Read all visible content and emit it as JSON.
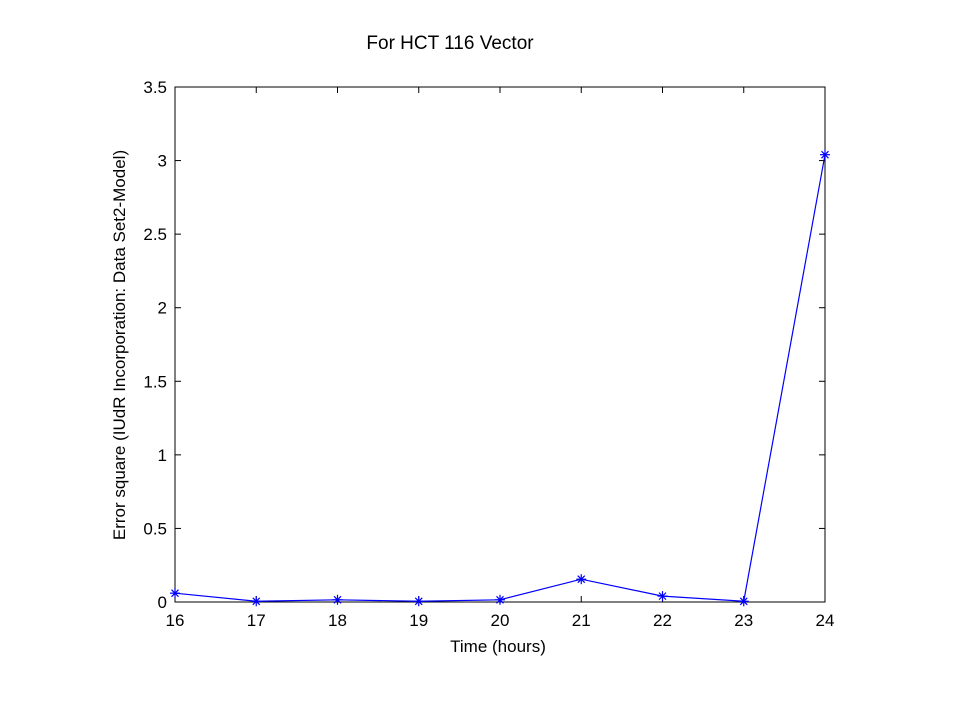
{
  "chart_data": {
    "type": "line",
    "title": "For HCT 116 Vector",
    "xlabel": "Time (hours)",
    "ylabel": "Error square (IUdR Incorporation: Data Set2-Model)",
    "xlim": [
      16,
      24
    ],
    "ylim": [
      0,
      3.5
    ],
    "xticks": [
      16,
      17,
      18,
      19,
      20,
      21,
      22,
      23,
      24
    ],
    "yticks": [
      0,
      0.5,
      1,
      1.5,
      2,
      2.5,
      3,
      3.5
    ],
    "xtick_labels": [
      "16",
      "17",
      "18",
      "19",
      "20",
      "21",
      "22",
      "23",
      "24"
    ],
    "ytick_labels": [
      "0",
      "0.5",
      "1",
      "1.5",
      "2",
      "2.5",
      "3",
      "3.5"
    ],
    "grid": false,
    "series": [
      {
        "color": "#0000ff",
        "marker": "asterisk",
        "x": [
          16,
          17,
          18,
          19,
          20,
          21,
          22,
          23,
          24
        ],
        "y": [
          0.06,
          0.005,
          0.015,
          0.005,
          0.015,
          0.155,
          0.04,
          0.005,
          3.04
        ]
      }
    ]
  }
}
